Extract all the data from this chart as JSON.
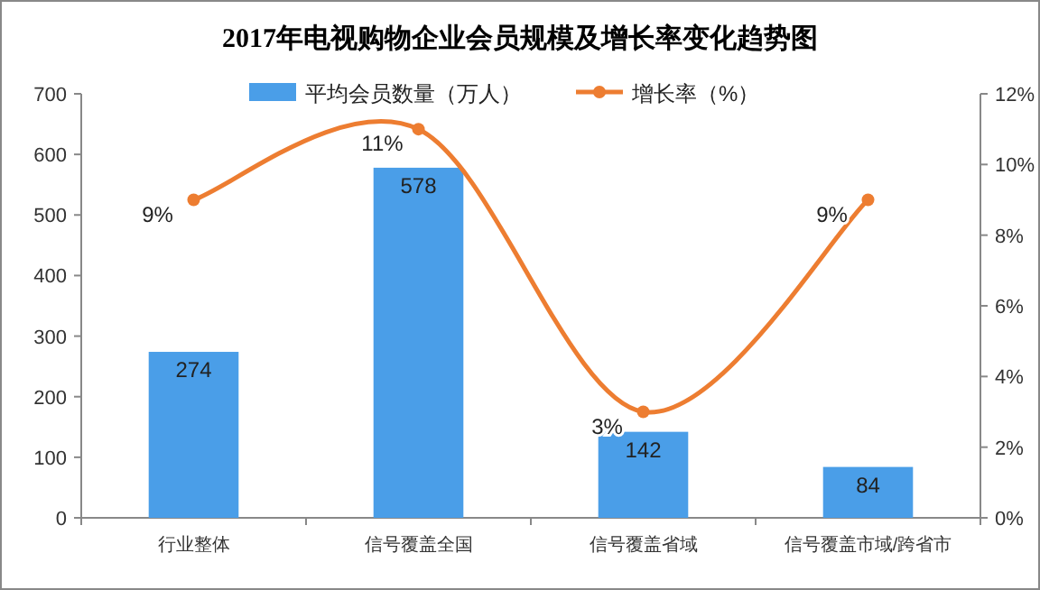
{
  "chart_data": {
    "type": "bar",
    "title": "2017年电视购物企业会员规模及增长率变化趋势图",
    "categories": [
      "行业整体",
      "信号覆盖全国",
      "信号覆盖省域",
      "信号覆盖市域/跨省市"
    ],
    "series": [
      {
        "name": "平均会员数量（万人）",
        "color": "#4a9ee8",
        "values": [
          274,
          578,
          142,
          84
        ],
        "data_labels": true
      },
      {
        "name": "增长率（%）",
        "type": "line",
        "axis": "y2",
        "color": "#ed7d31",
        "values": [
          9,
          11,
          3,
          9
        ],
        "value_labels": [
          "9%",
          "11%",
          "3%",
          "9%"
        ]
      }
    ],
    "ylim": [
      0,
      700
    ],
    "yticks": [
      0,
      100,
      200,
      300,
      400,
      500,
      600,
      700
    ],
    "y2lim": [
      0,
      12
    ],
    "y2ticks": [
      {
        "value": 0,
        "label": "0%"
      },
      {
        "value": 2,
        "label": "2%"
      },
      {
        "value": 4,
        "label": "4%"
      },
      {
        "value": 6,
        "label": "6%"
      },
      {
        "value": 8,
        "label": "8%"
      },
      {
        "value": 10,
        "label": "10%"
      },
      {
        "value": 12,
        "label": "12%"
      }
    ],
    "legend": "top",
    "grid": false,
    "marker": "circle",
    "line_style": "solid"
  }
}
